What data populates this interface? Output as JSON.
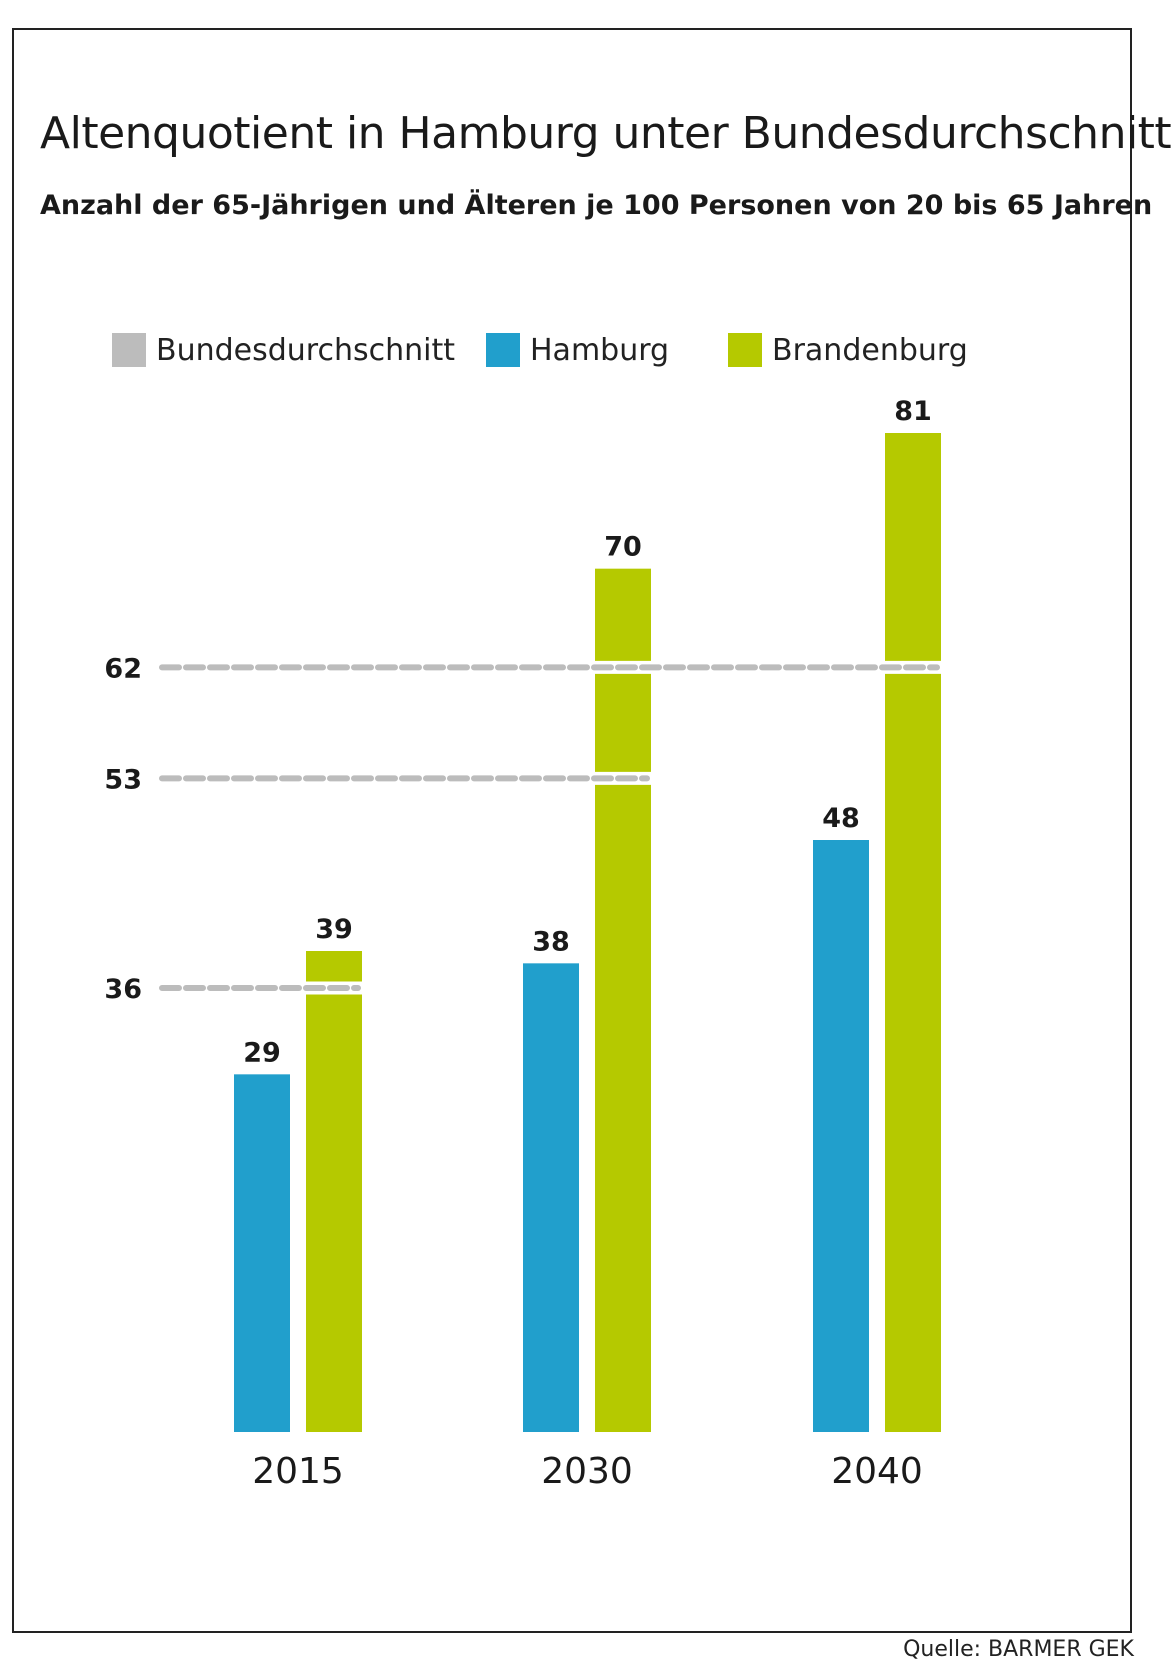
{
  "chart_data": {
    "type": "bar",
    "title": "Altenquotient in Hamburg unter Bundesdurchschnitt",
    "subtitle": "Anzahl der 65-Jährigen und Älteren  je 100 Personen von 20 bis 65 Jahren",
    "categories": [
      "2015",
      "2030",
      "2040"
    ],
    "series": [
      {
        "name": "Hamburg",
        "color": "#219fcc",
        "values": [
          29,
          38,
          48
        ]
      },
      {
        "name": "Brandenburg",
        "color": "#b5c900",
        "values": [
          39,
          70,
          81
        ]
      }
    ],
    "reference": {
      "name": "Bundesdurchschnitt",
      "color": "#bcbcbc",
      "values": [
        36,
        53,
        62
      ],
      "labels": [
        "36",
        "53",
        "62"
      ]
    },
    "ylim": [
      0,
      81
    ],
    "xlabel": "",
    "ylabel": ""
  },
  "source": "Quelle: BARMER GEK"
}
